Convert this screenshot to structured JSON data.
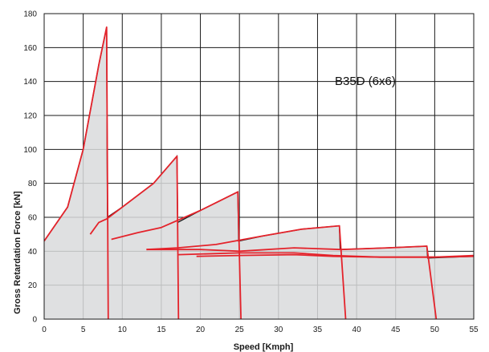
{
  "chart_data": {
    "type": "line",
    "title": "",
    "annotation": "B35D (6x6)",
    "xlabel": "Speed [Kmph]",
    "ylabel": "Gross Retardation Force [kN]",
    "xlim": [
      0,
      55
    ],
    "ylim": [
      0,
      180
    ],
    "x_ticks": [
      0,
      5,
      10,
      15,
      20,
      25,
      30,
      35,
      40,
      45,
      50,
      55
    ],
    "y_ticks": [
      0,
      20,
      40,
      60,
      80,
      100,
      120,
      140,
      160,
      180
    ],
    "grid": true,
    "colors": {
      "envelope_fill": "#d9dadc",
      "envelope_line": "#1a1a1a",
      "curve": "#e4232b",
      "grid": "#1a1a1a"
    },
    "envelope": [
      [
        0,
        0
      ],
      [
        0,
        46
      ],
      [
        3,
        66
      ],
      [
        5,
        100
      ],
      [
        7,
        150
      ],
      [
        8,
        172
      ],
      [
        8.1,
        60
      ],
      [
        10,
        66
      ],
      [
        14,
        80
      ],
      [
        17,
        96
      ],
      [
        17.1,
        57
      ],
      [
        20,
        64
      ],
      [
        24.8,
        75
      ],
      [
        24.9,
        46
      ],
      [
        28,
        49
      ],
      [
        33,
        53
      ],
      [
        37.8,
        55
      ],
      [
        37.9,
        41
      ],
      [
        44,
        42
      ],
      [
        49,
        43
      ],
      [
        49.1,
        36
      ],
      [
        55,
        37
      ],
      [
        55,
        0
      ]
    ],
    "series": [
      {
        "values": [
          [
            0,
            46
          ],
          [
            3,
            66
          ],
          [
            5,
            100
          ],
          [
            7,
            150
          ],
          [
            8,
            172
          ],
          [
            8.2,
            0
          ]
        ]
      },
      {
        "values": [
          [
            5.9,
            50
          ],
          [
            7,
            57
          ],
          [
            8,
            59
          ],
          [
            10,
            66
          ],
          [
            14,
            80
          ],
          [
            17,
            96
          ],
          [
            17.2,
            0
          ]
        ]
      },
      {
        "values": [
          [
            8.6,
            47
          ],
          [
            12,
            51
          ],
          [
            15,
            54
          ],
          [
            20,
            64
          ],
          [
            24.8,
            75
          ],
          [
            25.2,
            0
          ]
        ]
      },
      {
        "values": [
          [
            13.1,
            41
          ],
          [
            17.1,
            42
          ],
          [
            22,
            44
          ],
          [
            28,
            49
          ],
          [
            33,
            53
          ],
          [
            37.8,
            55
          ],
          [
            38.6,
            0
          ]
        ]
      },
      {
        "values": [
          [
            13.1,
            41
          ],
          [
            20,
            41
          ],
          [
            25,
            40
          ],
          [
            32,
            42
          ],
          [
            38,
            41
          ],
          [
            44,
            42
          ],
          [
            49,
            43
          ],
          [
            50.2,
            0
          ]
        ]
      },
      {
        "values": [
          [
            17.2,
            38
          ],
          [
            25,
            39
          ],
          [
            32,
            39
          ],
          [
            37,
            37.5
          ],
          [
            43,
            36.5
          ],
          [
            50,
            36.5
          ],
          [
            55,
            37.5
          ]
        ]
      },
      {
        "values": [
          [
            19.5,
            37
          ],
          [
            25,
            37.5
          ],
          [
            32,
            38
          ],
          [
            37,
            37
          ],
          [
            43,
            36.5
          ],
          [
            50,
            36.5
          ],
          [
            55,
            37
          ]
        ]
      }
    ]
  }
}
